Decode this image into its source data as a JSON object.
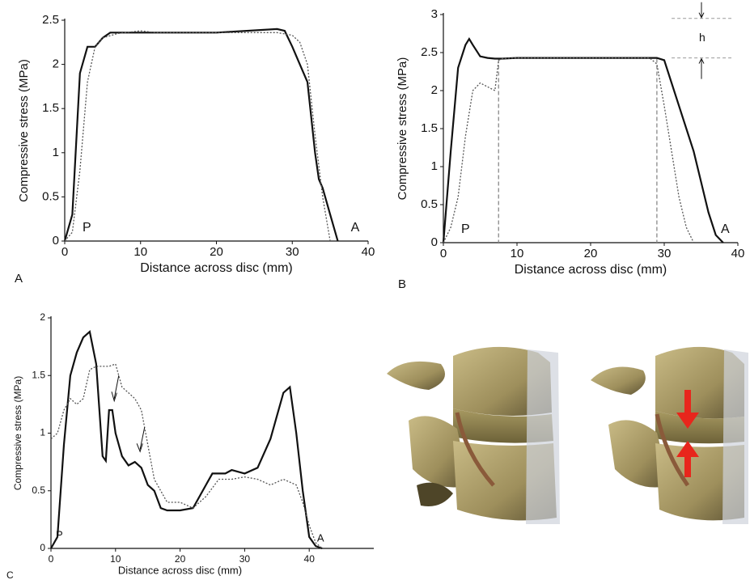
{
  "chart_data": [
    {
      "type": "line",
      "panel": "A",
      "x_label": "Distance across disc (mm)",
      "y_label": "Compressive stress (MPa)",
      "xlim": [
        0,
        40
      ],
      "ylim": [
        0,
        2.5
      ],
      "xticks": [
        0,
        10,
        20,
        30,
        40
      ],
      "yticks": [
        0,
        0.5,
        1,
        1.5,
        2,
        2.5
      ],
      "annotations": [
        "P",
        "A"
      ],
      "series": [
        {
          "color": "#111111",
          "style": "solid",
          "x": [
            0,
            1,
            2,
            3,
            4,
            5,
            6,
            10,
            20,
            28,
            29,
            30,
            31,
            32,
            33,
            33.5,
            34,
            35,
            36
          ],
          "values": [
            0,
            0.3,
            1.9,
            2.2,
            2.2,
            2.3,
            2.36,
            2.36,
            2.36,
            2.4,
            2.38,
            2.2,
            2.0,
            1.8,
            1.0,
            0.7,
            0.6,
            0.3,
            0
          ]
        },
        {
          "color": "#555555",
          "style": "dotted",
          "x": [
            0,
            1,
            2,
            3,
            4,
            5,
            7,
            10,
            12,
            20,
            28,
            30,
            31,
            32,
            33,
            34,
            35
          ],
          "values": [
            0,
            0.1,
            0.8,
            1.8,
            2.2,
            2.3,
            2.35,
            2.38,
            2.36,
            2.36,
            2.36,
            2.33,
            2.25,
            2.0,
            1.2,
            0.5,
            0
          ]
        }
      ]
    },
    {
      "type": "line",
      "panel": "B",
      "x_label": "Distance across disc (mm)",
      "y_label": "Compressive stress (MPa)",
      "xlim": [
        0,
        40
      ],
      "ylim": [
        0,
        3
      ],
      "xticks": [
        0,
        10,
        20,
        30,
        40
      ],
      "yticks": [
        0,
        0.5,
        1,
        1.5,
        2,
        2.5,
        3
      ],
      "annotations": [
        "P",
        "A"
      ],
      "h_label": "h",
      "vlines": [
        7.5,
        29
      ],
      "hlines": [
        2.43,
        2.95
      ],
      "series": [
        {
          "color": "#111111",
          "style": "solid",
          "x": [
            0,
            1,
            2,
            3,
            3.5,
            4,
            5,
            6,
            7,
            8,
            10,
            20,
            28,
            29,
            30,
            31,
            32,
            33,
            34,
            35,
            36,
            37,
            38
          ],
          "values": [
            0,
            1.2,
            2.3,
            2.6,
            2.68,
            2.6,
            2.45,
            2.43,
            2.42,
            2.42,
            2.43,
            2.43,
            2.43,
            2.43,
            2.4,
            2.1,
            1.8,
            1.5,
            1.2,
            0.8,
            0.4,
            0.1,
            0
          ]
        },
        {
          "color": "#555555",
          "style": "dotted",
          "x": [
            0,
            1,
            2,
            3,
            4,
            5,
            6,
            7,
            7.5,
            8,
            10,
            20,
            28,
            29,
            30,
            31,
            32,
            33,
            34
          ],
          "values": [
            0,
            0.2,
            0.6,
            1.4,
            2.0,
            2.1,
            2.05,
            2.0,
            2.4,
            2.42,
            2.43,
            2.43,
            2.43,
            2.35,
            1.8,
            1.2,
            0.6,
            0.2,
            0
          ]
        }
      ]
    },
    {
      "type": "line",
      "panel": "C",
      "x_label": "Distance across disc (mm)",
      "y_label": "Compressive stress (MPa)",
      "xlim": [
        0,
        50
      ],
      "ylim": [
        0,
        2
      ],
      "xticks": [
        0,
        10,
        20,
        30,
        40
      ],
      "yticks": [
        0,
        0.5,
        1,
        1.5,
        2
      ],
      "annotations": [
        "P",
        "A"
      ],
      "series": [
        {
          "color": "#111111",
          "style": "solid",
          "x": [
            0,
            1,
            2,
            3,
            4,
            5,
            6,
            7,
            8,
            8.5,
            9,
            9.5,
            10,
            11,
            12,
            13,
            14,
            15,
            16,
            17,
            18,
            20,
            22,
            24,
            25,
            27,
            28,
            30,
            32,
            34,
            35,
            36,
            37,
            38,
            39,
            40,
            41,
            42
          ],
          "values": [
            0,
            0.1,
            0.9,
            1.5,
            1.7,
            1.83,
            1.88,
            1.6,
            0.8,
            0.76,
            1.2,
            1.2,
            1.0,
            0.8,
            0.72,
            0.75,
            0.7,
            0.55,
            0.5,
            0.35,
            0.33,
            0.33,
            0.35,
            0.55,
            0.65,
            0.65,
            0.68,
            0.65,
            0.7,
            0.95,
            1.15,
            1.35,
            1.4,
            1.0,
            0.5,
            0.1,
            0.02,
            0
          ]
        },
        {
          "color": "#555555",
          "style": "dotted",
          "x": [
            0,
            1,
            2,
            3,
            4,
            5,
            6,
            7,
            8,
            9,
            10,
            11,
            12,
            13,
            14,
            15,
            16,
            17,
            18,
            20,
            22,
            24,
            26,
            28,
            30,
            32,
            34,
            36,
            38,
            39,
            40,
            41,
            42
          ],
          "values": [
            0.95,
            1.0,
            1.2,
            1.3,
            1.25,
            1.3,
            1.55,
            1.58,
            1.58,
            1.58,
            1.6,
            1.4,
            1.35,
            1.3,
            1.2,
            0.9,
            0.6,
            0.5,
            0.4,
            0.4,
            0.35,
            0.45,
            0.6,
            0.6,
            0.62,
            0.6,
            0.55,
            0.6,
            0.55,
            0.4,
            0.2,
            0.05,
            0
          ]
        }
      ]
    }
  ]
}
